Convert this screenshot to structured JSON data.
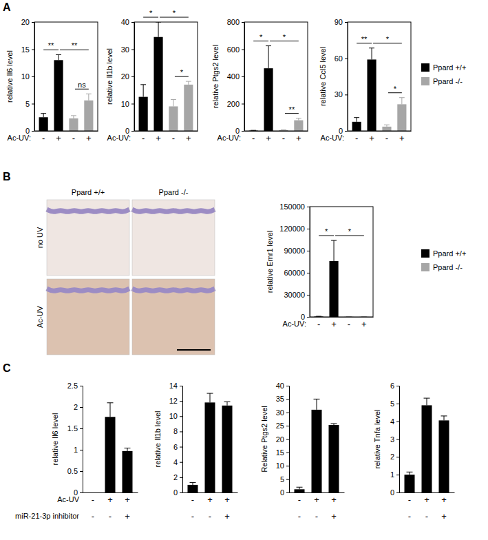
{
  "panel_labels": [
    "A",
    "B",
    "C"
  ],
  "legends": [
    {
      "entries": [
        {
          "name": "Ppard +/+",
          "color": "#000000"
        },
        {
          "name": "Ppard -/-",
          "color": "#a6a6a6"
        }
      ]
    },
    {
      "entries": [
        {
          "name": "Ppard +/+",
          "color": "#000000"
        },
        {
          "name": "Ppard -/-",
          "color": "#a6a6a6"
        }
      ]
    }
  ],
  "images": {
    "columns": [
      "Ppard +/+",
      "Ppard -/-"
    ],
    "rows": [
      "no UV",
      "Ac-UV"
    ]
  },
  "chart_data": [
    {
      "type": "bar",
      "y_label": "relative Il6 level",
      "x_label": "Ac-UV:",
      "categories": [
        "-",
        "+",
        "-",
        "+"
      ],
      "values": [
        2.5,
        13,
        2.3,
        5.6
      ],
      "errors": [
        0.7,
        1,
        0.5,
        1.2
      ],
      "colors": [
        "#000000",
        "#000000",
        "#a6a6a6",
        "#a6a6a6"
      ],
      "ylim": [
        0,
        20
      ],
      "yticks": [
        0,
        5,
        10,
        15,
        20
      ],
      "significance": [
        {
          "from": 0,
          "to": 1,
          "label": "**"
        },
        {
          "from": 1,
          "to": 3,
          "label": "**"
        },
        {
          "from": 2,
          "to": 3,
          "label": "ns"
        }
      ]
    },
    {
      "type": "bar",
      "y_label": "relative Il1b level",
      "x_label": "Ac-UV:",
      "categories": [
        "-",
        "+",
        "-",
        "+"
      ],
      "values": [
        12.5,
        34.5,
        9,
        17
      ],
      "errors": [
        4.5,
        5.5,
        2.5,
        1.2
      ],
      "colors": [
        "#000000",
        "#000000",
        "#a6a6a6",
        "#a6a6a6"
      ],
      "ylim": [
        0,
        40
      ],
      "yticks": [
        0,
        10,
        20,
        30,
        40
      ],
      "significance": [
        {
          "from": 0,
          "to": 1,
          "label": "*"
        },
        {
          "from": 1,
          "to": 3,
          "label": "*"
        },
        {
          "from": 2,
          "to": 3,
          "label": "*"
        }
      ]
    },
    {
      "type": "bar",
      "y_label": "relative Ptgs2 level",
      "x_label": "Ac-UV:",
      "categories": [
        "-",
        "+",
        "-",
        "+"
      ],
      "values": [
        2,
        460,
        5,
        78
      ],
      "errors": [
        2,
        165,
        3,
        15
      ],
      "colors": [
        "#000000",
        "#000000",
        "#a6a6a6",
        "#a6a6a6"
      ],
      "ylim": [
        0,
        800
      ],
      "yticks": [
        0,
        200,
        400,
        600,
        800
      ],
      "significance": [
        {
          "from": 0,
          "to": 1,
          "label": "*"
        },
        {
          "from": 1,
          "to": 3,
          "label": "*"
        },
        {
          "from": 2,
          "to": 3,
          "label": "**"
        }
      ]
    },
    {
      "type": "bar",
      "y_label": "relative Ccl5 level",
      "x_label": "Ac-UV:",
      "categories": [
        "-",
        "+",
        "-",
        "+"
      ],
      "values": [
        7.5,
        59,
        3.5,
        22
      ],
      "errors": [
        3.5,
        9.5,
        1.5,
        5.5
      ],
      "colors": [
        "#000000",
        "#000000",
        "#a6a6a6",
        "#a6a6a6"
      ],
      "ylim": [
        0,
        90
      ],
      "yticks": [
        0,
        30,
        60,
        90
      ],
      "significance": [
        {
          "from": 0,
          "to": 1,
          "label": "**"
        },
        {
          "from": 1,
          "to": 3,
          "label": "*"
        },
        {
          "from": 2,
          "to": 3,
          "label": "*"
        }
      ]
    },
    {
      "type": "bar",
      "y_label": "relative Emr1 level",
      "x_label": "Ac-UV:",
      "categories": [
        "-",
        "+",
        "-",
        "+"
      ],
      "values": [
        500,
        76000,
        300,
        200
      ],
      "errors": [
        300,
        28000,
        100,
        100
      ],
      "colors": [
        "#000000",
        "#000000",
        "#a6a6a6",
        "#a6a6a6"
      ],
      "ylim": [
        0,
        150000
      ],
      "yticks": [
        0,
        30000,
        60000,
        90000,
        120000,
        150000
      ],
      "significance": [
        {
          "from": 0,
          "to": 1,
          "label": "*"
        },
        {
          "from": 1,
          "to": 3,
          "label": "*"
        }
      ]
    },
    {
      "type": "bar",
      "y_label": "relative Il6 level",
      "x_label": "Ac-UV",
      "x_label2": "miR-21-3p inhibitor",
      "categories": [
        "-",
        "+",
        "+"
      ],
      "categories2": [
        "-",
        "-",
        "+"
      ],
      "values": [
        null,
        1.77,
        0.97
      ],
      "errors": [
        null,
        0.33,
        0.07
      ],
      "color": "#000000",
      "ylim": [
        0,
        2.5
      ],
      "yticks": [
        0,
        0.5,
        1,
        1.5,
        2,
        2.5
      ]
    },
    {
      "type": "bar",
      "y_label": "relative Il1b  level",
      "categories": [
        "-",
        "+",
        "+"
      ],
      "categories2": [
        "-",
        "-",
        "+"
      ],
      "values": [
        1,
        11.8,
        11.4
      ],
      "errors": [
        0.3,
        1.2,
        0.5
      ],
      "color": "#000000",
      "ylim": [
        0,
        14
      ],
      "yticks": [
        0,
        2,
        4,
        6,
        8,
        10,
        12,
        14
      ]
    },
    {
      "type": "bar",
      "y_label": "Relative Ptgs2  level",
      "categories": [
        "-",
        "+",
        "+"
      ],
      "categories2": [
        "-",
        "-",
        "+"
      ],
      "values": [
        1.2,
        31,
        25.3
      ],
      "errors": [
        0.8,
        4,
        0.5
      ],
      "color": "#000000",
      "ylim": [
        0,
        40
      ],
      "yticks": [
        0,
        5,
        10,
        15,
        20,
        25,
        30,
        35,
        40
      ]
    },
    {
      "type": "bar",
      "y_label": "relative Tnfa level",
      "categories": [
        "-",
        "+",
        "+"
      ],
      "categories2": [
        "-",
        "-",
        "+"
      ],
      "values": [
        1,
        4.9,
        4.05
      ],
      "errors": [
        0.15,
        0.4,
        0.25
      ],
      "color": "#000000",
      "ylim": [
        0,
        6
      ],
      "yticks": [
        0,
        1,
        2,
        3,
        4,
        5,
        6
      ]
    }
  ]
}
